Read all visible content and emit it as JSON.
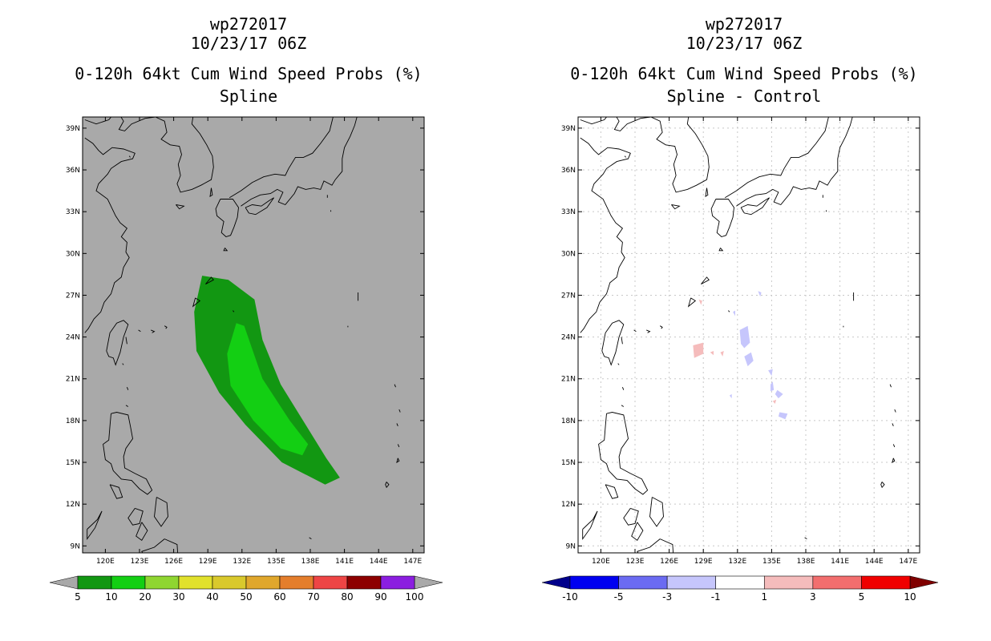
{
  "chart_data": [
    {
      "type": "heatmap",
      "storm_id": "wp272017",
      "datetime": "10/23/17 06Z",
      "title": "0-120h 64kt Cum Wind Speed Probs (%)",
      "subtitle": "Spline",
      "lon_range": [
        118,
        148
      ],
      "lat_range": [
        8.5,
        39.8
      ],
      "x_ticks": [
        "120E",
        "123E",
        "126E",
        "129E",
        "132E",
        "135E",
        "138E",
        "141E",
        "144E",
        "147E"
      ],
      "y_ticks": [
        "39N",
        "36N",
        "33N",
        "30N",
        "27N",
        "24N",
        "21N",
        "18N",
        "15N",
        "12N",
        "9N"
      ],
      "background_color": "#a9a9a9",
      "grid": false,
      "series": [
        {
          "name": "5-10%",
          "color": "#129712",
          "outline": [
            [
              128.5,
              28.4
            ],
            [
              130.8,
              28.1
            ],
            [
              133.1,
              26.7
            ],
            [
              133.8,
              23.8
            ],
            [
              135.4,
              20.6
            ],
            [
              139.4,
              15.3
            ],
            [
              140.6,
              13.9
            ],
            [
              139.3,
              13.4
            ],
            [
              135.5,
              15.0
            ],
            [
              132.3,
              17.7
            ],
            [
              130.0,
              20.0
            ],
            [
              128.0,
              23.0
            ],
            [
              127.8,
              25.8
            ]
          ]
        },
        {
          "name": "10-20%",
          "color": "#13cf13",
          "outline": [
            [
              131.5,
              25.0
            ],
            [
              132.2,
              24.8
            ],
            [
              133.8,
              21.0
            ],
            [
              136.2,
              18.0
            ],
            [
              137.8,
              16.3
            ],
            [
              137.3,
              15.5
            ],
            [
              135.4,
              16.0
            ],
            [
              133.0,
              18.0
            ],
            [
              131.0,
              20.5
            ],
            [
              130.7,
              22.8
            ]
          ]
        }
      ],
      "colorbar": {
        "labels": [
          "5",
          "10",
          "20",
          "30",
          "40",
          "50",
          "60",
          "70",
          "80",
          "90",
          "100"
        ],
        "colors": [
          "#129712",
          "#13cf13",
          "#8fd631",
          "#e1e12c",
          "#d9c92c",
          "#e0a72c",
          "#e47e2c",
          "#ee4545",
          "#8d0000",
          "#8b1ee0"
        ],
        "end_color": "#a9a9a9"
      }
    },
    {
      "type": "heatmap",
      "storm_id": "wp272017",
      "datetime": "10/23/17 06Z",
      "title": "0-120h 64kt Cum Wind Speed Probs (%)",
      "subtitle": "Spline - Control",
      "lon_range": [
        118,
        148
      ],
      "lat_range": [
        8.5,
        39.8
      ],
      "x_ticks": [
        "120E",
        "123E",
        "126E",
        "129E",
        "132E",
        "135E",
        "138E",
        "141E",
        "144E",
        "147E"
      ],
      "y_ticks": [
        "39N",
        "36N",
        "33N",
        "30N",
        "27N",
        "24N",
        "21N",
        "18N",
        "15N",
        "12N",
        "9N"
      ],
      "background_color": "#ffffff",
      "grid": true,
      "series": [
        {
          "name": "diff +1..+3",
          "color": "#f5bcbc",
          "outline": [
            [
              128.1,
              23.4
            ],
            [
              129.0,
              23.6
            ],
            [
              129.0,
              22.8
            ],
            [
              128.2,
              22.5
            ]
          ]
        },
        {
          "name": "diff +1..+3",
          "color": "#f5bcbc",
          "outline": [
            [
              129.6,
              22.9
            ],
            [
              129.9,
              23.0
            ],
            [
              129.9,
              22.7
            ]
          ]
        },
        {
          "name": "diff +1..+3",
          "color": "#f5bcbc",
          "outline": [
            [
              130.5,
              22.9
            ],
            [
              130.8,
              23.0
            ],
            [
              130.7,
              22.6
            ]
          ]
        },
        {
          "name": "diff +1..+3",
          "color": "#f5bcbc",
          "outline": [
            [
              128.6,
              26.7
            ],
            [
              128.9,
              26.6
            ],
            [
              128.8,
              26.3
            ]
          ]
        },
        {
          "name": "diff +1..+3",
          "color": "#f5bcbc",
          "outline": [
            [
              135.1,
              19.4
            ],
            [
              135.4,
              19.5
            ],
            [
              135.3,
              19.2
            ]
          ]
        },
        {
          "name": "diff -3..-1",
          "color": "#c6c6fc",
          "outline": [
            [
              132.2,
              24.5
            ],
            [
              132.9,
              24.8
            ],
            [
              133.1,
              23.6
            ],
            [
              132.6,
              23.2
            ],
            [
              132.3,
              23.5
            ]
          ]
        },
        {
          "name": "diff -3..-1",
          "color": "#c6c6fc",
          "outline": [
            [
              132.6,
              22.6
            ],
            [
              133.2,
              22.9
            ],
            [
              133.4,
              22.3
            ],
            [
              132.9,
              21.9
            ]
          ]
        },
        {
          "name": "diff -3..-1",
          "color": "#c6c6fc",
          "outline": [
            [
              134.7,
              21.6
            ],
            [
              135.1,
              21.7
            ],
            [
              135.0,
              21.2
            ]
          ]
        },
        {
          "name": "diff -3..-1",
          "color": "#c6c6fc",
          "outline": [
            [
              134.9,
              20.6
            ],
            [
              135.1,
              20.8
            ],
            [
              135.2,
              20.2
            ],
            [
              134.9,
              20.1
            ]
          ]
        },
        {
          "name": "diff -3..-1",
          "color": "#c6c6fc",
          "outline": [
            [
              135.5,
              20.2
            ],
            [
              136.0,
              19.9
            ],
            [
              135.6,
              19.6
            ],
            [
              135.3,
              19.9
            ]
          ]
        },
        {
          "name": "diff -3..-1",
          "color": "#c6c6fc",
          "outline": [
            [
              135.7,
              18.6
            ],
            [
              136.4,
              18.5
            ],
            [
              136.2,
              18.1
            ],
            [
              135.6,
              18.3
            ]
          ]
        },
        {
          "name": "diff -3..-1",
          "color": "#c6c6fc",
          "outline": [
            [
              133.8,
              27.3
            ],
            [
              134.1,
              27.2
            ],
            [
              134.0,
              26.9
            ]
          ]
        },
        {
          "name": "diff -3..-1",
          "color": "#c6c6fc",
          "outline": [
            [
              131.6,
              25.8
            ],
            [
              131.8,
              25.9
            ],
            [
              131.8,
              25.5
            ]
          ]
        },
        {
          "name": "diff -3..-1",
          "color": "#c6c6fc",
          "outline": [
            [
              131.3,
              19.8
            ],
            [
              131.5,
              19.9
            ],
            [
              131.5,
              19.6
            ]
          ]
        }
      ],
      "colorbar": {
        "labels": [
          "-10",
          "-5",
          "-3",
          "-1",
          "1",
          "3",
          "5",
          "10"
        ],
        "colors": [
          "#0000f0",
          "#6b6bf2",
          "#c6c6fc",
          "#ffffff",
          "#f5bcbc",
          "#f26e6e",
          "#f00000"
        ],
        "end_low": "#00008b",
        "end_high": "#800000"
      }
    }
  ]
}
